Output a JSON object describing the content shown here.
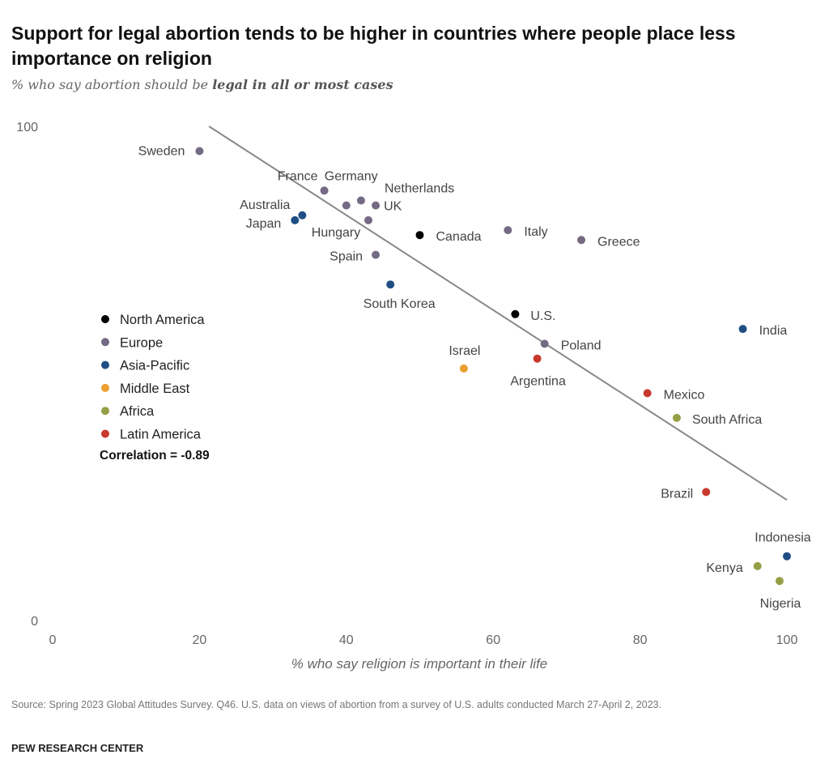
{
  "title": "Support for legal abortion tends to be higher in countries where people place less importance on religion",
  "subtitle_prefix": "% who say abortion should be ",
  "subtitle_bold": "legal in all or most cases",
  "source": "Source: Spring 2023 Global Attitudes Survey. Q46. U.S. data on views of abortion from a survey of U.S. adults conducted March 27-April 2, 2023.",
  "brand": "PEW RESEARCH CENTER",
  "chart_data": {
    "type": "scatter",
    "title": "Support for legal abortion tends to be higher in countries where people place less importance on religion",
    "xlabel": "% who say religion is important in their life",
    "ylabel": "",
    "xlim": [
      0,
      100
    ],
    "ylim": [
      0,
      100
    ],
    "x_ticks": [
      "0",
      "20",
      "40",
      "60",
      "80",
      "100"
    ],
    "y_ticks": [
      "0",
      "100"
    ],
    "grid": false,
    "legend_position": "left",
    "annotation": "Correlation = -0.89",
    "trendline": {
      "x": [
        21.3,
        100
      ],
      "y": [
        100,
        24.4
      ],
      "color": "#888888"
    },
    "groups": [
      {
        "name": "North America",
        "color": "#000000"
      },
      {
        "name": "Europe",
        "color": "#756a84"
      },
      {
        "name": "Asia-Pacific",
        "color": "#1f4e85"
      },
      {
        "name": "Middle East",
        "color": "#eba030"
      },
      {
        "name": "Africa",
        "color": "#95a046"
      },
      {
        "name": "Latin America",
        "color": "#c8392d"
      }
    ],
    "points": [
      {
        "label": "Sweden",
        "group": "Europe",
        "x": 20,
        "y": 95
      },
      {
        "label": "France",
        "group": "Europe",
        "x": 37,
        "y": 87
      },
      {
        "label": "Germany",
        "group": "Europe",
        "x": 40,
        "y": 84
      },
      {
        "label": "Netherlands",
        "group": "Europe",
        "x": 42,
        "y": 85
      },
      {
        "label": "UK",
        "group": "Europe",
        "x": 44,
        "y": 84
      },
      {
        "label": "Australia",
        "group": "Asia-Pacific",
        "x": 34,
        "y": 82
      },
      {
        "label": "Japan",
        "group": "Asia-Pacific",
        "x": 33,
        "y": 81
      },
      {
        "label": "Hungary",
        "group": "Europe",
        "x": 43,
        "y": 81
      },
      {
        "label": "Canada",
        "group": "North America",
        "x": 50,
        "y": 78
      },
      {
        "label": "Italy",
        "group": "Europe",
        "x": 62,
        "y": 79
      },
      {
        "label": "Greece",
        "group": "Europe",
        "x": 72,
        "y": 77
      },
      {
        "label": "Spain",
        "group": "Europe",
        "x": 44,
        "y": 74
      },
      {
        "label": "South Korea",
        "group": "Asia-Pacific",
        "x": 46,
        "y": 68
      },
      {
        "label": "U.S.",
        "group": "North America",
        "x": 63,
        "y": 62
      },
      {
        "label": "India",
        "group": "Asia-Pacific",
        "x": 94,
        "y": 59
      },
      {
        "label": "Poland",
        "group": "Europe",
        "x": 67,
        "y": 56
      },
      {
        "label": "Argentina",
        "group": "Latin America",
        "x": 66,
        "y": 53
      },
      {
        "label": "Israel",
        "group": "Middle East",
        "x": 56,
        "y": 51
      },
      {
        "label": "Mexico",
        "group": "Latin America",
        "x": 81,
        "y": 46
      },
      {
        "label": "South Africa",
        "group": "Africa",
        "x": 85,
        "y": 41
      },
      {
        "label": "Brazil",
        "group": "Latin America",
        "x": 89,
        "y": 26
      },
      {
        "label": "Indonesia",
        "group": "Asia-Pacific",
        "x": 100,
        "y": 13
      },
      {
        "label": "Kenya",
        "group": "Africa",
        "x": 96,
        "y": 11
      },
      {
        "label": "Nigeria",
        "group": "Africa",
        "x": 99,
        "y": 8
      }
    ]
  }
}
